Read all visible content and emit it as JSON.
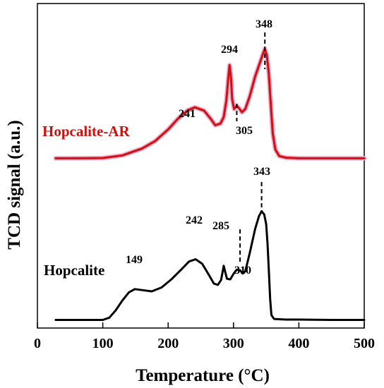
{
  "chart_data": {
    "type": "line",
    "xlabel": "Temperature (°C)",
    "ylabel": "TCD signal (a.u.)",
    "xlim": [
      0,
      500
    ],
    "ylim": [
      0,
      1
    ],
    "xticks": [
      0,
      100,
      200,
      300,
      400,
      500
    ],
    "grid": false,
    "legend": "none",
    "series": [
      {
        "name": "Hopcalite-AR",
        "color": "#cc1111",
        "glow_color": "#f4a6c8",
        "points": [
          [
            28,
            0.523
          ],
          [
            60,
            0.523
          ],
          [
            100,
            0.524
          ],
          [
            130,
            0.532
          ],
          [
            160,
            0.553
          ],
          [
            180,
            0.576
          ],
          [
            200,
            0.612
          ],
          [
            215,
            0.645
          ],
          [
            230,
            0.671
          ],
          [
            241,
            0.68
          ],
          [
            255,
            0.67
          ],
          [
            265,
            0.645
          ],
          [
            272,
            0.625
          ],
          [
            280,
            0.63
          ],
          [
            285,
            0.65
          ],
          [
            289,
            0.7
          ],
          [
            292,
            0.77
          ],
          [
            294,
            0.81
          ],
          [
            296,
            0.775
          ],
          [
            298,
            0.705
          ],
          [
            301,
            0.675
          ],
          [
            305,
            0.685
          ],
          [
            309,
            0.676
          ],
          [
            313,
            0.665
          ],
          [
            318,
            0.675
          ],
          [
            325,
            0.715
          ],
          [
            333,
            0.775
          ],
          [
            340,
            0.815
          ],
          [
            345,
            0.845
          ],
          [
            348,
            0.86
          ],
          [
            351,
            0.84
          ],
          [
            354,
            0.785
          ],
          [
            357,
            0.69
          ],
          [
            360,
            0.6
          ],
          [
            364,
            0.55
          ],
          [
            370,
            0.53
          ],
          [
            380,
            0.525
          ],
          [
            400,
            0.523
          ],
          [
            450,
            0.523
          ],
          [
            500,
            0.523
          ]
        ],
        "peaks": [
          {
            "label": "241",
            "x": 241
          },
          {
            "label": "294",
            "x": 294
          },
          {
            "label": "305",
            "x": 305
          },
          {
            "label": "348",
            "x": 348
          }
        ]
      },
      {
        "name": "Hopcalite",
        "color": "#000000",
        "points": [
          [
            28,
            0.025
          ],
          [
            80,
            0.025
          ],
          [
            100,
            0.025
          ],
          [
            110,
            0.032
          ],
          [
            120,
            0.055
          ],
          [
            130,
            0.085
          ],
          [
            140,
            0.11
          ],
          [
            149,
            0.12
          ],
          [
            160,
            0.117
          ],
          [
            175,
            0.113
          ],
          [
            190,
            0.125
          ],
          [
            205,
            0.15
          ],
          [
            220,
            0.18
          ],
          [
            232,
            0.205
          ],
          [
            242,
            0.212
          ],
          [
            252,
            0.198
          ],
          [
            262,
            0.165
          ],
          [
            270,
            0.137
          ],
          [
            276,
            0.133
          ],
          [
            281,
            0.148
          ],
          [
            284,
            0.18
          ],
          [
            285,
            0.192
          ],
          [
            287,
            0.175
          ],
          [
            290,
            0.152
          ],
          [
            295,
            0.15
          ],
          [
            300,
            0.167
          ],
          [
            305,
            0.18
          ],
          [
            310,
            0.178
          ],
          [
            314,
            0.168
          ],
          [
            318,
            0.175
          ],
          [
            325,
            0.232
          ],
          [
            333,
            0.305
          ],
          [
            339,
            0.345
          ],
          [
            343,
            0.36
          ],
          [
            347,
            0.35
          ],
          [
            350,
            0.32
          ],
          [
            352,
            0.26
          ],
          [
            354,
            0.18
          ],
          [
            356,
            0.09
          ],
          [
            358,
            0.04
          ],
          [
            362,
            0.028
          ],
          [
            380,
            0.026
          ],
          [
            400,
            0.026
          ],
          [
            450,
            0.025
          ],
          [
            500,
            0.025
          ]
        ],
        "peaks": [
          {
            "label": "149",
            "x": 149
          },
          {
            "label": "242",
            "x": 242
          },
          {
            "label": "285",
            "x": 285
          },
          {
            "label": "310",
            "x": 310
          },
          {
            "label": "343",
            "x": 343
          }
        ]
      }
    ]
  }
}
